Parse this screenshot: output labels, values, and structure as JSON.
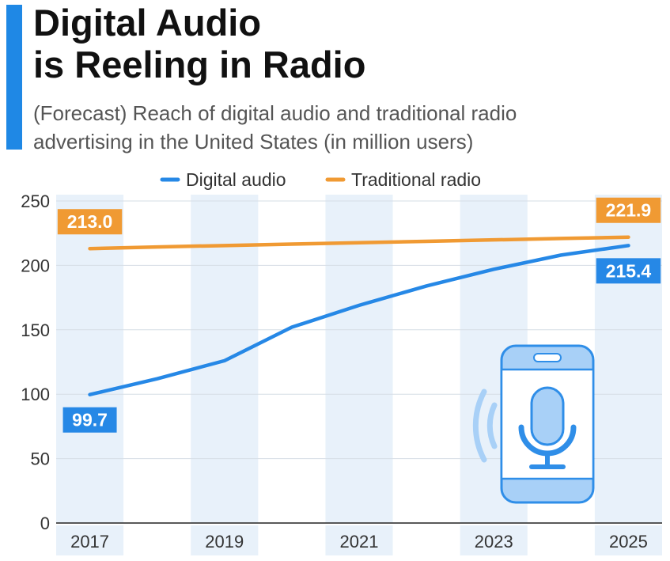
{
  "header": {
    "title_line1": "Digital Audio",
    "title_line2": "is Reeling in Radio",
    "subtitle_line1": "(Forecast) Reach of digital audio and traditional radio",
    "subtitle_line2": "advertising in the United States (in million users)"
  },
  "colors": {
    "accent": "#1f88e5",
    "digital_audio": "#2688e6",
    "traditional_radio": "#f09a33",
    "band": "#e8f1fa",
    "icon_fill": "#a8d0f7",
    "icon_stroke": "#2f8ee8"
  },
  "chart_data": {
    "type": "line",
    "title": "Digital Audio is Reeling in Radio",
    "subtitle": "(Forecast) Reach of digital audio and traditional radio advertising in the United States (in million users)",
    "x": [
      2017,
      2018,
      2019,
      2020,
      2021,
      2022,
      2023,
      2024,
      2025
    ],
    "x_tick_labels": [
      "2017",
      "2019",
      "2021",
      "2023",
      "2025"
    ],
    "x_ticks": [
      2017,
      2019,
      2021,
      2023,
      2025
    ],
    "xlim": [
      2016.5,
      2025.5
    ],
    "ylim": [
      0,
      250
    ],
    "y_ticks": [
      0,
      50,
      100,
      150,
      200,
      250
    ],
    "grid": true,
    "legend": "top-center",
    "series": [
      {
        "name": "Digital audio",
        "color": "#2688e6",
        "values": [
          99.7,
          112,
          126,
          152,
          169,
          184,
          197,
          208,
          215.4
        ],
        "labels": [
          {
            "index": 0,
            "text": "99.7",
            "position": "below"
          },
          {
            "index": 8,
            "text": "215.4",
            "position": "below"
          }
        ]
      },
      {
        "name": "Traditional radio",
        "color": "#f09a33",
        "values": [
          213.0,
          214.3,
          215.4,
          216.5,
          217.6,
          218.7,
          219.8,
          220.9,
          221.9
        ],
        "labels": [
          {
            "index": 0,
            "text": "213.0",
            "position": "above"
          },
          {
            "index": 8,
            "text": "221.9",
            "position": "above"
          }
        ]
      }
    ]
  },
  "illustration": {
    "icon": "smartphone-microphone-icon"
  }
}
